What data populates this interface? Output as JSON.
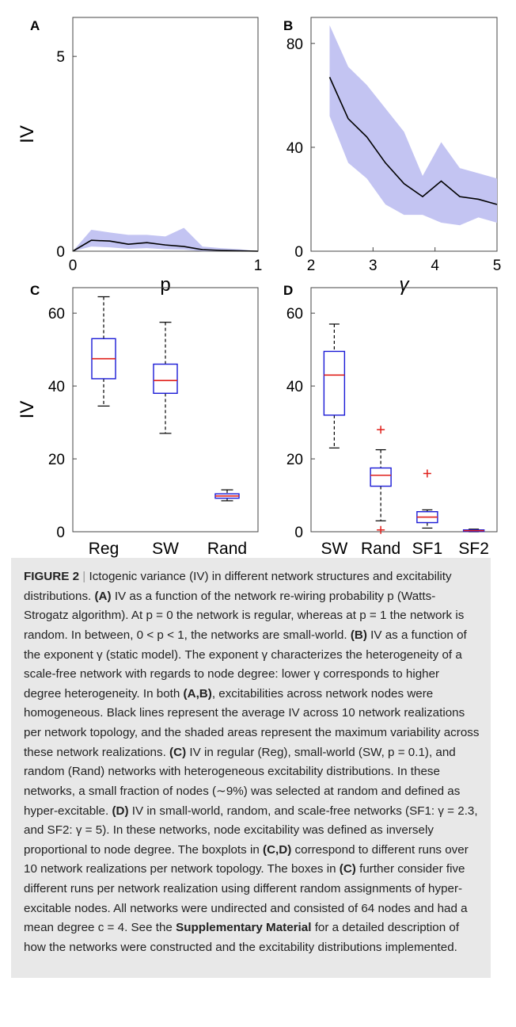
{
  "chart_data": [
    {
      "id": "panel-a",
      "type": "area",
      "panel_label": "A",
      "xlabel": "p",
      "ylabel": "IV",
      "xlim": [
        0,
        1
      ],
      "ylim": [
        0,
        6
      ],
      "xticks": [
        0,
        1
      ],
      "yticks": [
        0,
        5
      ],
      "series": [
        {
          "x": [
            0,
            0.1,
            0.2,
            0.3,
            0.4,
            0.5,
            0.6,
            0.7,
            0.8,
            0.9,
            1.0
          ],
          "y": [
            0,
            0.28,
            0.26,
            0.18,
            0.22,
            0.16,
            0.12,
            0.04,
            0.02,
            0.01,
            0
          ]
        }
      ],
      "band": {
        "x": [
          0,
          0.1,
          0.2,
          0.3,
          0.4,
          0.5,
          0.6,
          0.7,
          0.8,
          0.9,
          1.0
        ],
        "low": [
          0,
          0.12,
          0.1,
          0.06,
          0.08,
          0.05,
          0.04,
          0.0,
          0.0,
          0.0,
          0
        ],
        "high": [
          0,
          0.55,
          0.48,
          0.42,
          0.42,
          0.38,
          0.6,
          0.12,
          0.08,
          0.05,
          0
        ]
      }
    },
    {
      "id": "panel-b",
      "type": "area",
      "panel_label": "B",
      "xlabel": "γ",
      "ylabel": "",
      "xlim": [
        2,
        5
      ],
      "ylim": [
        0,
        90
      ],
      "xticks": [
        2,
        3,
        4,
        5
      ],
      "yticks": [
        0,
        40,
        80
      ],
      "series": [
        {
          "x": [
            2.3,
            2.6,
            2.9,
            3.2,
            3.5,
            3.8,
            4.1,
            4.4,
            4.7,
            5.0
          ],
          "y": [
            67,
            51,
            44,
            34,
            26,
            21,
            27,
            21,
            20,
            18
          ]
        }
      ],
      "band": {
        "x": [
          2.3,
          2.6,
          2.9,
          3.2,
          3.5,
          3.8,
          4.1,
          4.4,
          4.7,
          5.0
        ],
        "low": [
          52,
          34,
          28,
          18,
          14,
          14,
          11,
          10,
          13,
          11
        ],
        "high": [
          87,
          71,
          64,
          55,
          46,
          29,
          42,
          32,
          30,
          28
        ]
      }
    },
    {
      "id": "panel-c",
      "type": "box",
      "panel_label": "C",
      "ylabel": "IV",
      "ylim": [
        0,
        67
      ],
      "yticks": [
        0,
        20,
        40,
        60
      ],
      "categories": [
        "Reg",
        "SW",
        "Rand"
      ],
      "boxes": [
        {
          "min": 34.5,
          "q1": 42,
          "median": 47.5,
          "q3": 53,
          "max": 64.5,
          "outliers": []
        },
        {
          "min": 27,
          "q1": 38,
          "median": 41.5,
          "q3": 46,
          "max": 57.5,
          "outliers": []
        },
        {
          "min": 8.5,
          "q1": 9.2,
          "median": 9.8,
          "q3": 10.4,
          "max": 11.5,
          "outliers": []
        }
      ]
    },
    {
      "id": "panel-d",
      "type": "box",
      "panel_label": "D",
      "ylabel": "",
      "ylim": [
        0,
        67
      ],
      "yticks": [
        0,
        20,
        40,
        60
      ],
      "categories": [
        "SW",
        "Rand",
        "SF1",
        "SF2"
      ],
      "boxes": [
        {
          "min": 23,
          "q1": 32,
          "median": 43,
          "q3": 49.5,
          "max": 57,
          "outliers": []
        },
        {
          "min": 3,
          "q1": 12.5,
          "median": 15.5,
          "q3": 17.5,
          "max": 22.5,
          "outliers": [
            28,
            0.5
          ]
        },
        {
          "min": 1,
          "q1": 2.5,
          "median": 4,
          "q3": 5.5,
          "max": 6,
          "outliers": [
            16
          ]
        },
        {
          "min": 0,
          "q1": 0.1,
          "median": 0.3,
          "q3": 0.5,
          "max": 0.7,
          "outliers": []
        }
      ]
    }
  ],
  "colors": {
    "band": "#c3c4f2",
    "line": "#000000",
    "box": "#1a1ad6",
    "median": "#e0201b",
    "outlier": "#e0201b",
    "caption_bg": "#e8e8e8"
  },
  "caption": {
    "label": "FIGURE 2",
    "separator": "|",
    "title": "Ictogenic variance (IV) in different network structures and excitability distributions.",
    "p1_tag": "(A)",
    "p1": "IV as a function of the network re-wiring probability p (Watts-Strogatz algorithm). At p = 0 the network is regular, whereas at p = 1 the network is random. In between, 0 < p < 1, the networks are small-world.",
    "p2_tag": "(B)",
    "p2": "IV as a function of the exponent γ (static model). The exponent γ characterizes the heterogeneity of a scale-free network with regards to node degree: lower γ corresponds to higher degree heterogeneity. In both",
    "p2b_tag": "(A,B)",
    "p2b": ", excitabilities across network nodes were homogeneous. Black lines represent the average IV across 10 network realizations per network topology, and the shaded areas represent the maximum variability across these network realizations.",
    "p3_tag": "(C)",
    "p3": "IV in regular (Reg), small-world (SW, p = 0.1), and random (Rand) networks with heterogeneous excitability distributions. In these networks, a small fraction of nodes (∼9%) was selected at random and defined as hyper-excitable.",
    "p4_tag": "(D)",
    "p4": "IV in small-world, random, and scale-free networks (SF1: γ = 2.3, and SF2: γ = 5). In these networks, node excitability was defined as inversely proportional to node degree. The boxplots in",
    "p4b_tag": "(C,D)",
    "p4b": "correspond to different runs over 10 network realizations per network topology. The boxes in",
    "p4c_tag": "(C)",
    "p4c": "further consider five different runs per network realization using different random assignments of hyper-excitable nodes. All networks were undirected and consisted of 64 nodes and had a mean degree c = 4. See the",
    "supp": "Supplementary Material",
    "p5": "for a detailed description of how the networks were constructed and the excitability distributions implemented."
  }
}
